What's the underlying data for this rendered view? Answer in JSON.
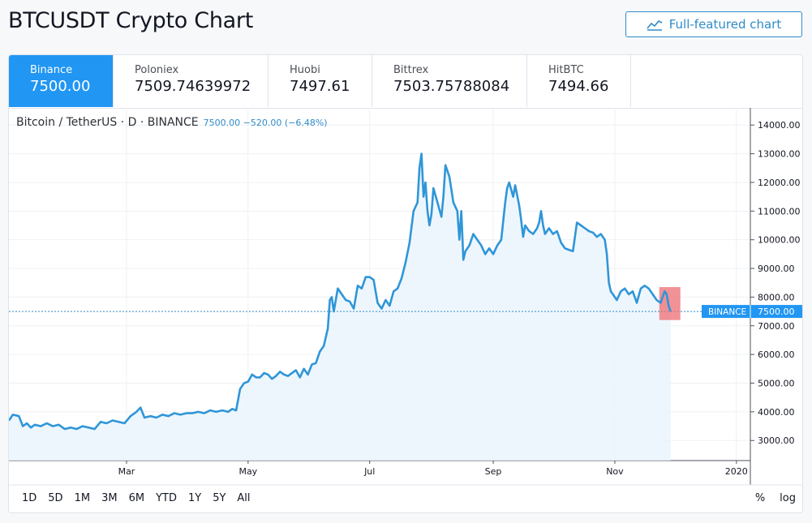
{
  "header": {
    "title": "BTCUSDT Crypto Chart",
    "full_chart_label": "Full-featured chart",
    "full_chart_icon": "chart-line-icon"
  },
  "exchanges": [
    {
      "name": "Binance",
      "price": "7500.00",
      "active": true
    },
    {
      "name": "Poloniex",
      "price": "7509.74639972",
      "active": false
    },
    {
      "name": "Huobi",
      "price": "7497.61",
      "active": false
    },
    {
      "name": "Bittrex",
      "price": "7503.75788084",
      "active": false
    },
    {
      "name": "HitBTC",
      "price": "7494.66",
      "active": false
    }
  ],
  "symbol": {
    "label": "Bitcoin / TetherUS · D · BINANCE",
    "values": "7500.00 −520.00 (−6.48%)"
  },
  "price_badge": {
    "exchange": "BINANCE",
    "price": "7500.00"
  },
  "ranges": [
    "1D",
    "5D",
    "1M",
    "3M",
    "6M",
    "YTD",
    "1Y",
    "5Y",
    "All"
  ],
  "scale_buttons": [
    "%",
    "log"
  ],
  "colors": {
    "accent": "#2196f3",
    "line": "#2f96d8",
    "fill": "#eaf4fc",
    "highlight": "#ee6e73"
  },
  "chart_data": {
    "type": "area",
    "y_ticks": [
      "3000.00",
      "4000.00",
      "5000.00",
      "6000.00",
      "7000.00",
      "8000.00",
      "9000.00",
      "10000.00",
      "11000.00",
      "12000.00",
      "13000.00",
      "14000.00"
    ],
    "x_ticks": [
      {
        "label": "Mar",
        "t": 59
      },
      {
        "label": "May",
        "t": 120
      },
      {
        "label": "Jul",
        "t": 181
      },
      {
        "label": "Sep",
        "t": 243
      },
      {
        "label": "Nov",
        "t": 304
      },
      {
        "label": "2020",
        "t": 365
      }
    ],
    "ylim": [
      2300,
      14600
    ],
    "xlim": [
      0,
      372
    ],
    "grid": true,
    "last_price": 7500,
    "series": [
      {
        "points": [
          [
            0,
            3700
          ],
          [
            2,
            3900
          ],
          [
            5,
            3850
          ],
          [
            7,
            3500
          ],
          [
            9,
            3600
          ],
          [
            11,
            3450
          ],
          [
            13,
            3550
          ],
          [
            16,
            3500
          ],
          [
            19,
            3600
          ],
          [
            22,
            3500
          ],
          [
            25,
            3550
          ],
          [
            28,
            3400
          ],
          [
            31,
            3450
          ],
          [
            34,
            3400
          ],
          [
            37,
            3500
          ],
          [
            40,
            3450
          ],
          [
            43,
            3400
          ],
          [
            46,
            3650
          ],
          [
            49,
            3600
          ],
          [
            52,
            3700
          ],
          [
            55,
            3650
          ],
          [
            58,
            3600
          ],
          [
            61,
            3850
          ],
          [
            64,
            4000
          ],
          [
            66,
            4150
          ],
          [
            68,
            3800
          ],
          [
            71,
            3850
          ],
          [
            74,
            3800
          ],
          [
            77,
            3900
          ],
          [
            80,
            3850
          ],
          [
            83,
            3950
          ],
          [
            86,
            3900
          ],
          [
            89,
            3950
          ],
          [
            92,
            3950
          ],
          [
            95,
            4000
          ],
          [
            98,
            3950
          ],
          [
            101,
            4050
          ],
          [
            104,
            4000
          ],
          [
            107,
            4050
          ],
          [
            110,
            4000
          ],
          [
            112,
            4100
          ],
          [
            114,
            4050
          ],
          [
            116,
            4800
          ],
          [
            118,
            5000
          ],
          [
            120,
            5050
          ],
          [
            122,
            5300
          ],
          [
            124,
            5200
          ],
          [
            126,
            5200
          ],
          [
            128,
            5350
          ],
          [
            130,
            5300
          ],
          [
            132,
            5150
          ],
          [
            134,
            5250
          ],
          [
            136,
            5400
          ],
          [
            138,
            5300
          ],
          [
            140,
            5250
          ],
          [
            142,
            5350
          ],
          [
            144,
            5450
          ],
          [
            146,
            5200
          ],
          [
            148,
            5500
          ],
          [
            150,
            5300
          ],
          [
            152,
            5650
          ],
          [
            154,
            5700
          ],
          [
            156,
            6100
          ],
          [
            158,
            6300
          ],
          [
            160,
            6900
          ],
          [
            161,
            7900
          ],
          [
            162,
            8000
          ],
          [
            163,
            7500
          ],
          [
            165,
            8300
          ],
          [
            167,
            8100
          ],
          [
            169,
            7900
          ],
          [
            171,
            7850
          ],
          [
            173,
            7600
          ],
          [
            175,
            8400
          ],
          [
            177,
            8300
          ],
          [
            179,
            8700
          ],
          [
            181,
            8700
          ],
          [
            183,
            8600
          ],
          [
            185,
            7800
          ],
          [
            187,
            7600
          ],
          [
            189,
            7900
          ],
          [
            191,
            7700
          ],
          [
            193,
            8200
          ],
          [
            195,
            8300
          ],
          [
            197,
            8650
          ],
          [
            199,
            9200
          ],
          [
            201,
            9900
          ],
          [
            203,
            11000
          ],
          [
            205,
            11300
          ],
          [
            206,
            12500
          ],
          [
            207,
            13000
          ],
          [
            208,
            11500
          ],
          [
            209,
            12000
          ],
          [
            210,
            11000
          ],
          [
            211,
            10500
          ],
          [
            212,
            10900
          ],
          [
            213,
            11800
          ],
          [
            215,
            11300
          ],
          [
            217,
            10800
          ],
          [
            218,
            11500
          ],
          [
            219,
            12600
          ],
          [
            221,
            12200
          ],
          [
            223,
            11300
          ],
          [
            225,
            11000
          ],
          [
            226,
            10000
          ],
          [
            227,
            11000
          ],
          [
            228,
            9300
          ],
          [
            229,
            9600
          ],
          [
            231,
            9800
          ],
          [
            233,
            10200
          ],
          [
            235,
            10000
          ],
          [
            237,
            9800
          ],
          [
            239,
            9500
          ],
          [
            241,
            9700
          ],
          [
            243,
            9500
          ],
          [
            245,
            9800
          ],
          [
            247,
            10000
          ],
          [
            249,
            11300
          ],
          [
            250,
            11800
          ],
          [
            251,
            12000
          ],
          [
            253,
            11500
          ],
          [
            254,
            11900
          ],
          [
            256,
            11200
          ],
          [
            257,
            10700
          ],
          [
            258,
            10100
          ],
          [
            259,
            10500
          ],
          [
            261,
            10300
          ],
          [
            263,
            10200
          ],
          [
            265,
            10400
          ],
          [
            266,
            10600
          ],
          [
            267,
            11000
          ],
          [
            268,
            10500
          ],
          [
            269,
            10200
          ],
          [
            271,
            10400
          ],
          [
            273,
            10200
          ],
          [
            275,
            10300
          ],
          [
            277,
            9900
          ],
          [
            279,
            9700
          ],
          [
            281,
            9650
          ],
          [
            283,
            9600
          ],
          [
            285,
            10600
          ],
          [
            287,
            10500
          ],
          [
            289,
            10400
          ],
          [
            291,
            10300
          ],
          [
            293,
            10250
          ],
          [
            295,
            10100
          ],
          [
            297,
            10200
          ],
          [
            299,
            10000
          ],
          [
            300,
            9500
          ],
          [
            301,
            8500
          ],
          [
            302,
            8200
          ],
          [
            303,
            8100
          ],
          [
            305,
            7900
          ],
          [
            307,
            8200
          ],
          [
            309,
            8300
          ],
          [
            311,
            8100
          ],
          [
            313,
            8200
          ],
          [
            315,
            7800
          ],
          [
            317,
            8300
          ],
          [
            319,
            8400
          ],
          [
            321,
            8300
          ],
          [
            323,
            8100
          ],
          [
            325,
            7900
          ],
          [
            327,
            7800
          ],
          [
            329,
            8200
          ],
          [
            330,
            8100
          ],
          [
            331,
            7700
          ],
          [
            332,
            7500
          ]
        ]
      }
    ]
  }
}
